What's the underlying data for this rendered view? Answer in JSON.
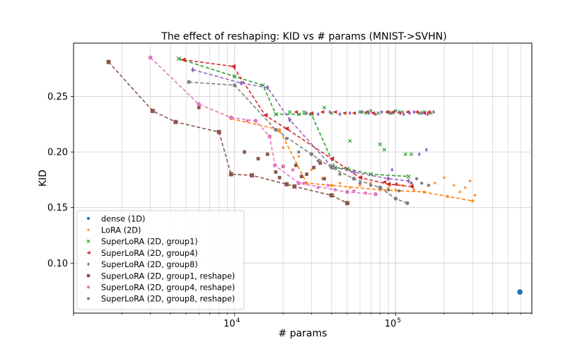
{
  "chart_data": {
    "type": "scatter",
    "title": "The effect of reshaping: KID vs # params (MNIST->SVHN)",
    "xlabel": "# params",
    "ylabel": "KID",
    "xscale": "log",
    "xlim": [
      1000,
      700000
    ],
    "ylim": [
      0.055,
      0.298
    ],
    "x_tick_labels": [
      {
        "value": 10000,
        "base": "10",
        "exp": "4"
      },
      {
        "value": 100000,
        "base": "10",
        "exp": "5"
      }
    ],
    "y_ticks": [
      0.1,
      0.15,
      0.2,
      0.25
    ],
    "y_tick_labels": [
      "0.10",
      "0.15",
      "0.20",
      "0.25"
    ],
    "grid": true,
    "legend_position": "lower-left",
    "series": [
      {
        "name": "dense (1D)",
        "color": "#1f77b4",
        "marker": "circle-large",
        "line": [],
        "points": [
          [
            590000,
            0.074
          ]
        ]
      },
      {
        "name": "LoRA (2D)",
        "color": "#ff7f0e",
        "marker": "star",
        "line": [
          [
            9500,
            0.23
          ],
          [
            19000,
            0.22
          ],
          [
            28000,
            0.172
          ],
          [
            40000,
            0.17
          ],
          [
            80000,
            0.166
          ],
          [
            150000,
            0.164
          ],
          [
            210000,
            0.16
          ],
          [
            300000,
            0.156
          ]
        ],
        "points": [
          [
            20000,
            0.204
          ],
          [
            25000,
            0.196
          ],
          [
            30000,
            0.184
          ],
          [
            35000,
            0.176
          ],
          [
            45000,
            0.172
          ],
          [
            52000,
            0.168
          ],
          [
            60000,
            0.17
          ],
          [
            70000,
            0.172
          ],
          [
            90000,
            0.168
          ],
          [
            100000,
            0.166
          ],
          [
            110000,
            0.17
          ],
          [
            130000,
            0.166
          ],
          [
            160000,
            0.17
          ],
          [
            175000,
            0.172
          ],
          [
            200000,
            0.177
          ],
          [
            230000,
            0.17
          ],
          [
            250000,
            0.164
          ],
          [
            270000,
            0.168
          ],
          [
            290000,
            0.174
          ],
          [
            310000,
            0.161
          ]
        ]
      },
      {
        "name": "SuperLoRA (2D, group1)",
        "color": "#2ca02c",
        "marker": "x",
        "line": [
          [
            4500,
            0.284
          ],
          [
            10000,
            0.268
          ],
          [
            15000,
            0.26
          ],
          [
            18000,
            0.234
          ],
          [
            30000,
            0.234
          ],
          [
            42000,
            0.186
          ],
          [
            50000,
            0.185
          ],
          [
            70000,
            0.18
          ],
          [
            120000,
            0.178
          ]
        ],
        "points": [
          [
            22000,
            0.236
          ],
          [
            25000,
            0.234
          ],
          [
            27000,
            0.236
          ],
          [
            36000,
            0.24
          ],
          [
            40000,
            0.235
          ],
          [
            52000,
            0.21
          ],
          [
            60000,
            0.236
          ],
          [
            65000,
            0.235
          ],
          [
            70000,
            0.237
          ],
          [
            78000,
            0.235
          ],
          [
            80000,
            0.207
          ],
          [
            85000,
            0.202
          ],
          [
            90000,
            0.236
          ],
          [
            95000,
            0.235
          ],
          [
            100000,
            0.237
          ],
          [
            110000,
            0.236
          ],
          [
            115000,
            0.198
          ],
          [
            125000,
            0.198
          ],
          [
            140000,
            0.235
          ],
          [
            150000,
            0.236
          ],
          [
            165000,
            0.235
          ]
        ]
      },
      {
        "name": "SuperLoRA (2D, group4)",
        "color": "#d62728",
        "marker": "triangle-left",
        "line": [
          [
            4800,
            0.283
          ],
          [
            9800,
            0.277
          ],
          [
            15500,
            0.233
          ],
          [
            21000,
            0.221
          ],
          [
            40000,
            0.194
          ],
          [
            60000,
            0.177
          ],
          [
            90000,
            0.171
          ],
          [
            125000,
            0.169
          ]
        ],
        "points": [
          [
            24000,
            0.236
          ],
          [
            30000,
            0.235
          ],
          [
            35000,
            0.236
          ],
          [
            42000,
            0.236
          ],
          [
            48000,
            0.235
          ],
          [
            55000,
            0.235
          ],
          [
            66000,
            0.236
          ],
          [
            72000,
            0.235
          ],
          [
            88000,
            0.236
          ],
          [
            96000,
            0.236
          ],
          [
            105000,
            0.235
          ],
          [
            118000,
            0.236
          ],
          [
            135000,
            0.236
          ],
          [
            150000,
            0.235
          ],
          [
            160000,
            0.236
          ],
          [
            85000,
            0.173
          ],
          [
            100000,
            0.171
          ]
        ]
      },
      {
        "name": "SuperLoRA (2D, group8)",
        "color": "#9467bd",
        "marker": "diamond",
        "line": [
          [
            5500,
            0.274
          ],
          [
            11000,
            0.262
          ],
          [
            16000,
            0.258
          ],
          [
            22000,
            0.229
          ],
          [
            40000,
            0.187
          ],
          [
            55000,
            0.182
          ],
          [
            90000,
            0.176
          ],
          [
            120000,
            0.174
          ]
        ],
        "points": [
          [
            28000,
            0.235
          ],
          [
            33000,
            0.234
          ],
          [
            39000,
            0.236
          ],
          [
            45000,
            0.234
          ],
          [
            52000,
            0.235
          ],
          [
            62000,
            0.236
          ],
          [
            68000,
            0.235
          ],
          [
            75000,
            0.234
          ],
          [
            82000,
            0.236
          ],
          [
            92000,
            0.235
          ],
          [
            105000,
            0.236
          ],
          [
            112000,
            0.234
          ],
          [
            122000,
            0.235
          ],
          [
            130000,
            0.236
          ],
          [
            145000,
            0.235
          ],
          [
            158000,
            0.234
          ],
          [
            172000,
            0.236
          ],
          [
            140000,
            0.198
          ],
          [
            155000,
            0.202
          ],
          [
            95000,
            0.184
          ]
        ]
      },
      {
        "name": "SuperLoRA (2D, group1, reshape)",
        "color": "#8c564b",
        "marker": "square",
        "line": [
          [
            1650,
            0.281
          ],
          [
            3100,
            0.237
          ],
          [
            4300,
            0.227
          ],
          [
            8000,
            0.218
          ],
          [
            9500,
            0.18
          ],
          [
            12800,
            0.179
          ],
          [
            21000,
            0.171
          ],
          [
            23500,
            0.169
          ],
          [
            40000,
            0.161
          ],
          [
            50000,
            0.154
          ]
        ],
        "points": [
          [
            6000,
            0.24
          ],
          [
            11500,
            0.2
          ],
          [
            14000,
            0.194
          ],
          [
            16000,
            0.198
          ],
          [
            18000,
            0.182
          ],
          [
            19000,
            0.177
          ],
          [
            20000,
            0.187
          ],
          [
            24000,
            0.188
          ],
          [
            26000,
            0.178
          ],
          [
            28000,
            0.18
          ],
          [
            31000,
            0.186
          ],
          [
            34000,
            0.19
          ],
          [
            36000,
            0.176
          ]
        ]
      },
      {
        "name": "SuperLoRA (2D, group4, reshape)",
        "color": "#e377c2",
        "marker": "pentagon",
        "line": [
          [
            3000,
            0.285
          ],
          [
            6000,
            0.243
          ],
          [
            9500,
            0.231
          ],
          [
            13500,
            0.228
          ],
          [
            16500,
            0.214
          ],
          [
            17800,
            0.188
          ],
          [
            25000,
            0.172
          ],
          [
            50000,
            0.164
          ],
          [
            75000,
            0.162
          ]
        ],
        "points": [
          [
            12000,
            0.228
          ],
          [
            20000,
            0.187
          ],
          [
            23000,
            0.184
          ],
          [
            27000,
            0.172
          ],
          [
            33000,
            0.168
          ],
          [
            38000,
            0.17
          ],
          [
            42000,
            0.166
          ],
          [
            55000,
            0.165
          ],
          [
            65000,
            0.163
          ]
        ]
      },
      {
        "name": "SuperLoRA (2D, group8, reshape)",
        "color": "#7f7f7f",
        "marker": "circle",
        "line": [
          [
            5200,
            0.263
          ],
          [
            10000,
            0.26
          ],
          [
            18000,
            0.22
          ],
          [
            30000,
            0.198
          ],
          [
            40000,
            0.186
          ],
          [
            55000,
            0.176
          ],
          [
            80000,
            0.168
          ],
          [
            100000,
            0.158
          ],
          [
            118000,
            0.154
          ]
        ],
        "points": [
          [
            21000,
            0.212
          ],
          [
            25000,
            0.2
          ],
          [
            33000,
            0.192
          ],
          [
            45000,
            0.18
          ],
          [
            60000,
            0.172
          ],
          [
            70000,
            0.17
          ],
          [
            90000,
            0.166
          ],
          [
            105000,
            0.165
          ],
          [
            125000,
            0.172
          ],
          [
            135000,
            0.176
          ],
          [
            145000,
            0.172
          ],
          [
            160000,
            0.17
          ]
        ]
      }
    ]
  }
}
